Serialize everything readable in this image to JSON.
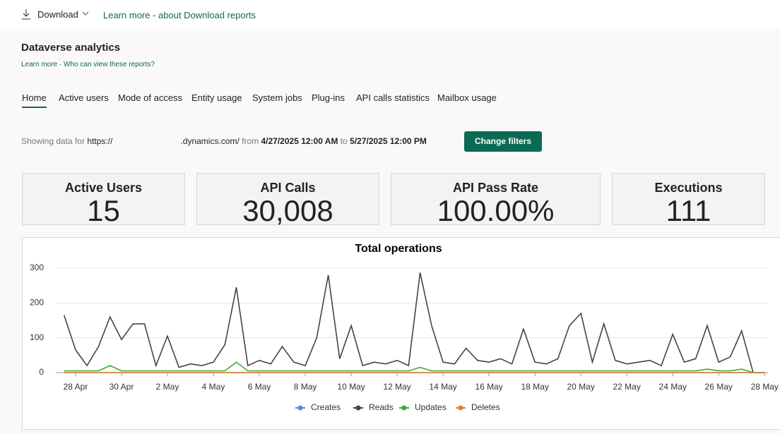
{
  "toolbar": {
    "download": "Download",
    "learn_more": "Learn more - about Download reports"
  },
  "header": {
    "title": "Dataverse analytics",
    "links": [
      "Learn more",
      "Who can view these reports?"
    ],
    "separator": "·"
  },
  "tabs": [
    "Home",
    "Active users",
    "Mode of access",
    "Entity usage",
    "System jobs",
    "Plug-ins",
    "API calls statistics",
    "Mailbox usage"
  ],
  "filter": {
    "prefix": "Showing data for",
    "url": "https://",
    "url_suffix": ".dynamics.com/",
    "from": "from",
    "start": "4/27/2025 12:00 AM",
    "to": "to",
    "end": "5/27/2025 12:00 PM",
    "button": "Change filters"
  },
  "cards": [
    {
      "label": "Active Users",
      "value": "15"
    },
    {
      "label": "API Calls",
      "value": "30,008"
    },
    {
      "label": "API Pass Rate",
      "value": "100.00%"
    },
    {
      "label": "Executions",
      "value": "111"
    }
  ],
  "chart_data": {
    "type": "line",
    "title": "Total operations",
    "x": [
      0.5,
      1,
      1.5,
      2,
      2.5,
      3,
      3.5,
      4,
      4.5,
      5,
      5.5,
      6,
      6.5,
      7,
      7.5,
      8,
      8.5,
      9,
      9.5,
      10,
      10.5,
      11,
      11.5,
      12,
      12.5,
      13,
      13.5,
      14,
      14.5,
      15,
      15.5,
      16,
      16.5,
      17,
      17.5,
      18,
      18.5,
      19,
      19.5,
      20,
      20.5,
      21,
      21.5,
      22,
      22.5,
      23,
      23.5,
      24,
      24.5,
      25,
      25.5,
      26,
      26.5,
      27,
      27.5,
      28,
      28.5,
      29,
      29.5,
      30,
      30.5,
      31
    ],
    "series": [
      {
        "name": "Creates",
        "color": "#4a90d9",
        "values": [
          0,
          0,
          0,
          0,
          0,
          0,
          0,
          0,
          0,
          0,
          0,
          0,
          0,
          0,
          0,
          0,
          0,
          0,
          0,
          0,
          0,
          0,
          0,
          0,
          0,
          0,
          0,
          0,
          0,
          0,
          0,
          0,
          0,
          0,
          0,
          0,
          0,
          0,
          0,
          0,
          0,
          0,
          0,
          0,
          0,
          0,
          0,
          0,
          0,
          0,
          0,
          0,
          0,
          0,
          0,
          0,
          0,
          0,
          0,
          0,
          0,
          0
        ]
      },
      {
        "name": "Reads",
        "color": "#444444",
        "values": [
          165,
          65,
          20,
          75,
          160,
          95,
          140,
          140,
          20,
          105,
          15,
          25,
          20,
          30,
          80,
          245,
          20,
          35,
          25,
          75,
          30,
          20,
          100,
          280,
          40,
          135,
          20,
          30,
          25,
          35,
          20,
          287,
          135,
          30,
          25,
          70,
          35,
          30,
          40,
          25,
          125,
          30,
          25,
          40,
          135,
          170,
          30,
          140,
          35,
          25,
          30,
          35,
          20,
          110,
          30,
          40,
          135,
          30,
          45,
          120,
          0,
          0
        ]
      },
      {
        "name": "Updates",
        "color": "#3aaa35",
        "values": [
          5,
          5,
          5,
          5,
          20,
          5,
          5,
          5,
          5,
          5,
          5,
          5,
          5,
          5,
          5,
          30,
          5,
          5,
          5,
          5,
          5,
          5,
          5,
          5,
          5,
          5,
          5,
          5,
          5,
          5,
          5,
          15,
          5,
          5,
          5,
          5,
          5,
          5,
          5,
          5,
          5,
          5,
          5,
          5,
          5,
          5,
          5,
          5,
          5,
          5,
          5,
          5,
          5,
          5,
          5,
          5,
          10,
          5,
          5,
          10,
          0,
          0
        ]
      },
      {
        "name": "Deletes",
        "color": "#e67e22",
        "values": [
          0,
          0,
          0,
          0,
          0,
          0,
          0,
          0,
          0,
          0,
          0,
          0,
          0,
          0,
          0,
          0,
          0,
          0,
          0,
          0,
          0,
          0,
          0,
          0,
          0,
          0,
          0,
          0,
          0,
          0,
          0,
          0,
          0,
          0,
          0,
          0,
          0,
          0,
          0,
          0,
          0,
          0,
          0,
          0,
          0,
          0,
          0,
          0,
          0,
          0,
          0,
          0,
          0,
          0,
          0,
          0,
          0,
          0,
          0,
          0,
          0,
          0
        ]
      }
    ],
    "xlim": [
      0.14,
      31.3
    ],
    "xticks": [
      {
        "value": 1,
        "label": "28 Apr"
      },
      {
        "value": 3,
        "label": "30 Apr"
      },
      {
        "value": 5,
        "label": "2 May"
      },
      {
        "value": 7,
        "label": "4 May"
      },
      {
        "value": 9,
        "label": "6 May"
      },
      {
        "value": 11,
        "label": "8 May"
      },
      {
        "value": 13,
        "label": "10 May"
      },
      {
        "value": 15,
        "label": "12 May"
      },
      {
        "value": 17,
        "label": "14 May"
      },
      {
        "value": 19,
        "label": "16 May"
      },
      {
        "value": 21,
        "label": "18 May"
      },
      {
        "value": 23,
        "label": "20 May"
      },
      {
        "value": 25,
        "label": "22 May"
      },
      {
        "value": 27,
        "label": "24 May"
      },
      {
        "value": 29,
        "label": "26 May"
      },
      {
        "value": 31,
        "label": "28 May"
      }
    ],
    "ylim": [
      0,
      330
    ],
    "yticks": [
      0,
      100,
      200,
      300
    ],
    "grid": true
  }
}
